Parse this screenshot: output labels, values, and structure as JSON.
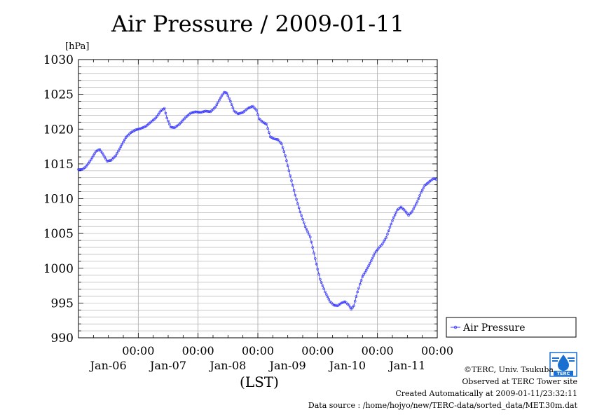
{
  "chart_data": {
    "type": "line",
    "title": "Air Pressure / 2009-01-11",
    "ylabel": "[hPa]",
    "xlabel": "(LST)",
    "ylim": [
      990,
      1030
    ],
    "yticks": [
      "990",
      "995",
      "1000",
      "1005",
      "1010",
      "1015",
      "1020",
      "1025",
      "1030"
    ],
    "xlim_hours": [
      0,
      144
    ],
    "xticks": [
      {
        "time": "00:00",
        "day": "Jan-06"
      },
      {
        "time": "00:00",
        "day": "Jan-07"
      },
      {
        "time": "00:00",
        "day": "Jan-08"
      },
      {
        "time": "00:00",
        "day": "Jan-09"
      },
      {
        "time": "00:00",
        "day": "Jan-10"
      },
      {
        "time": "00:00",
        "day": "Jan-11"
      }
    ],
    "series": [
      {
        "name": "Air Pressure",
        "color": "#3333ff",
        "keypoints": [
          [
            0,
            1014.2
          ],
          [
            1.5,
            1014.2
          ],
          [
            3,
            1014.6
          ],
          [
            5,
            1015.6
          ],
          [
            7,
            1016.8
          ],
          [
            8.5,
            1017.1
          ],
          [
            10,
            1016.3
          ],
          [
            11.5,
            1015.4
          ],
          [
            13,
            1015.5
          ],
          [
            15,
            1016.2
          ],
          [
            17,
            1017.5
          ],
          [
            19,
            1018.8
          ],
          [
            21,
            1019.5
          ],
          [
            23,
            1019.9
          ],
          [
            25,
            1020.1
          ],
          [
            27,
            1020.4
          ],
          [
            29,
            1021.0
          ],
          [
            31,
            1021.6
          ],
          [
            33,
            1022.6
          ],
          [
            34.5,
            1023.0
          ],
          [
            35.5,
            1021.6
          ],
          [
            37,
            1020.3
          ],
          [
            38.5,
            1020.2
          ],
          [
            40.5,
            1020.7
          ],
          [
            43,
            1021.7
          ],
          [
            45,
            1022.3
          ],
          [
            47,
            1022.5
          ],
          [
            49,
            1022.4
          ],
          [
            51,
            1022.6
          ],
          [
            53,
            1022.5
          ],
          [
            55,
            1023.2
          ],
          [
            57,
            1024.5
          ],
          [
            58.5,
            1025.3
          ],
          [
            59.5,
            1025.2
          ],
          [
            61,
            1024.0
          ],
          [
            62.5,
            1022.6
          ],
          [
            64,
            1022.2
          ],
          [
            66,
            1022.4
          ],
          [
            68,
            1023.0
          ],
          [
            70,
            1023.3
          ],
          [
            71.5,
            1022.7
          ],
          [
            72.5,
            1021.5
          ],
          [
            74,
            1021.0
          ],
          [
            75.5,
            1020.7
          ],
          [
            77,
            1018.9
          ],
          [
            78.5,
            1018.6
          ],
          [
            80,
            1018.5
          ],
          [
            81.5,
            1017.9
          ],
          [
            83,
            1016.2
          ],
          [
            85,
            1013.3
          ],
          [
            87,
            1010.5
          ],
          [
            89,
            1008.1
          ],
          [
            91,
            1006.0
          ],
          [
            93,
            1004.5
          ],
          [
            94,
            1003.0
          ],
          [
            95.5,
            1000.6
          ],
          [
            97,
            998.4
          ],
          [
            99,
            996.6
          ],
          [
            101,
            995.2
          ],
          [
            102.5,
            994.7
          ],
          [
            104,
            994.6
          ],
          [
            105.5,
            995.0
          ],
          [
            107,
            995.2
          ],
          [
            108.5,
            994.7
          ],
          [
            109.5,
            994.1
          ],
          [
            110.5,
            994.6
          ],
          [
            112,
            996.6
          ],
          [
            114,
            998.8
          ],
          [
            115.5,
            999.7
          ],
          [
            117,
            1000.7
          ],
          [
            119,
            1002.2
          ],
          [
            120.5,
            1002.9
          ],
          [
            122,
            1003.5
          ],
          [
            123.5,
            1004.4
          ],
          [
            125,
            1005.9
          ],
          [
            126.5,
            1007.3
          ],
          [
            128,
            1008.4
          ],
          [
            129.5,
            1008.8
          ],
          [
            131,
            1008.3
          ],
          [
            132.5,
            1007.6
          ],
          [
            134,
            1008.2
          ],
          [
            136,
            1009.6
          ],
          [
            137.5,
            1010.9
          ],
          [
            139,
            1011.9
          ],
          [
            141,
            1012.5
          ],
          [
            142.5,
            1012.9
          ],
          [
            143.5,
            1012.8
          ]
        ]
      }
    ],
    "legend_position": "right",
    "grid": true
  },
  "credits": {
    "line1": "©TERC, Univ. Tsukuba",
    "line2": "Observed at TERC Tower site",
    "line3": "Created Automatically at 2009-01-11/23:32:11",
    "line4": "Data source : /home/hojyo/new/TERC-data/sorted_data/MET.30m.dat"
  },
  "logo": {
    "text": "TERC",
    "color": "#1a6fd0"
  }
}
